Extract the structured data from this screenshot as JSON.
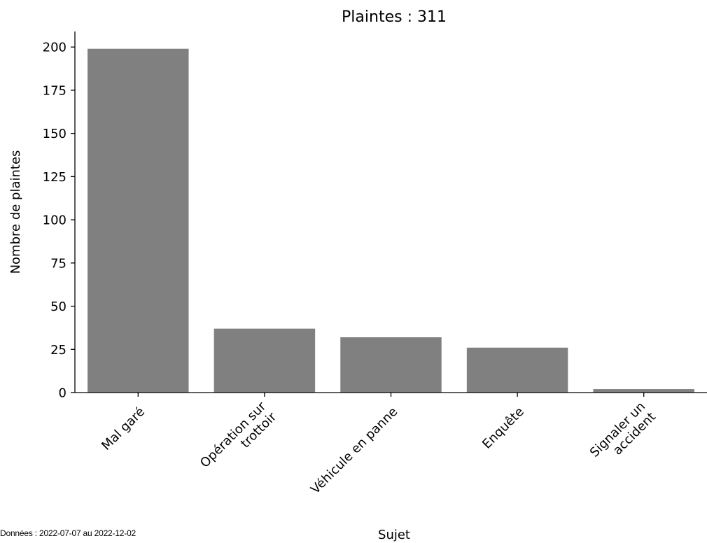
{
  "chart_data": {
    "type": "bar",
    "title": "Plaintes : 311",
    "xlabel": "Sujet",
    "ylabel": "Nombre de plaintes",
    "categories": [
      [
        "Mal garé"
      ],
      [
        "Opération sur",
        "trottoir"
      ],
      [
        "Véhicule en panne"
      ],
      [
        "Enquête"
      ],
      [
        "Signaler un",
        "accident"
      ]
    ],
    "values": [
      199,
      37,
      32,
      26,
      2
    ],
    "yticks": [
      0,
      25,
      50,
      75,
      100,
      125,
      150,
      175,
      200
    ],
    "ylim": [
      0,
      209
    ],
    "bar_color": "#808080",
    "grid": false
  },
  "footnote": "Données : 2022-07-07 au 2022-12-02"
}
